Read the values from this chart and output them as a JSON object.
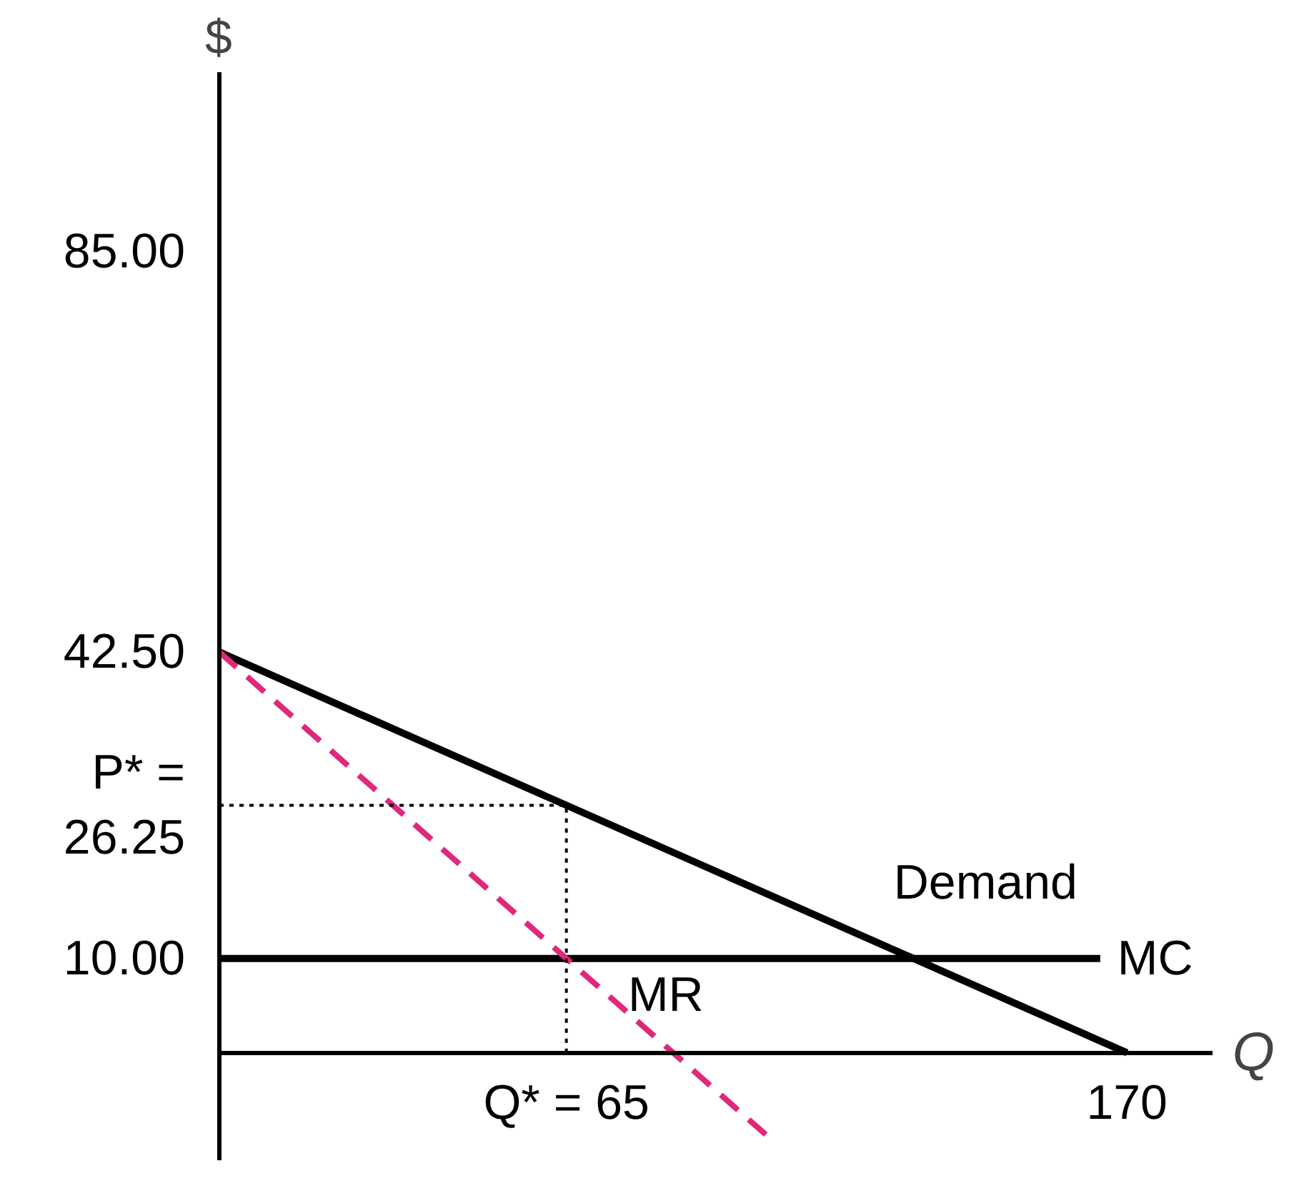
{
  "chart_data": {
    "type": "line",
    "xlabel": "Q",
    "ylabel": "$",
    "xlim": [
      0,
      186
    ],
    "ylim": [
      -11.4,
      104
    ],
    "xticks": [
      {
        "value": 65,
        "label": "Q* = 65"
      },
      170
    ],
    "yticks": [
      {
        "value": 10,
        "label": "10.00"
      },
      {
        "value": 26.25,
        "label": "P* =\n26.25"
      },
      {
        "value": 42.5,
        "label": "42.50"
      },
      {
        "value": 85,
        "label": "85.00"
      }
    ],
    "grid": false,
    "marker": "none",
    "series": [
      {
        "name": "Demand",
        "color": "#000000",
        "x": [
          0,
          170
        ],
        "values": [
          42.5,
          0
        ],
        "line_style": "solid"
      },
      {
        "name": "MC",
        "color": "#000000",
        "x": [
          0,
          165
        ],
        "values": [
          10,
          10
        ],
        "line_style": "solid"
      },
      {
        "name": "MR",
        "color": "#e0287a",
        "x": [
          0,
          104
        ],
        "values": [
          42.5,
          -9.5
        ],
        "line_style": "dashed"
      },
      {
        "color": "#000000",
        "x": [
          0,
          65
        ],
        "values": [
          26.25,
          26.25
        ],
        "line_style": "dotted"
      },
      {
        "color": "#000000",
        "x": [
          65,
          65
        ],
        "values": [
          0,
          26.25
        ],
        "line_style": "dotted"
      }
    ]
  }
}
